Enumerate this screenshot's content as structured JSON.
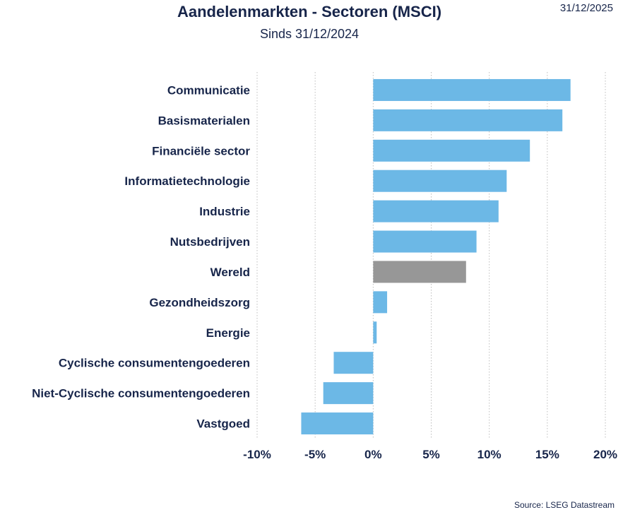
{
  "header": {
    "title": "Aandelenmarkten - Sectoren (MSCI)",
    "subtitle": "Sinds 31/12/2024",
    "date": "31/12/2025"
  },
  "footer": {
    "source": "Source: LSEG Datastream"
  },
  "colors": {
    "bar": "#6cb8e6",
    "highlight": "#979797",
    "text": "#17254a",
    "grid": "#bdbdbd"
  },
  "chart_data": {
    "type": "bar",
    "orientation": "horizontal",
    "title": "Aandelenmarkten - Sectoren (MSCI)",
    "subtitle": "Sinds 31/12/2024",
    "categories": [
      "Communicatie",
      "Basismaterialen",
      "Financiële sector",
      "Informatietechnologie",
      "Industrie",
      "Nutsbedrijven",
      "Wereld",
      "Gezondheidszorg",
      "Energie",
      "Cyclische consumentengoederen",
      "Niet-Cyclische consumentengoederen",
      "Vastgoed"
    ],
    "values": [
      17.0,
      16.3,
      13.5,
      11.5,
      10.8,
      8.9,
      8.0,
      1.2,
      0.3,
      -3.4,
      -4.3,
      -6.2
    ],
    "highlight": "Wereld",
    "xlim": [
      -10,
      20
    ],
    "xticks": [
      -10,
      -5,
      0,
      5,
      10,
      15,
      20
    ],
    "xtick_labels": [
      "-10%",
      "-5%",
      "0%",
      "5%",
      "10%",
      "15%",
      "20%"
    ],
    "unit": "%",
    "grid": "vertical-dotted"
  }
}
